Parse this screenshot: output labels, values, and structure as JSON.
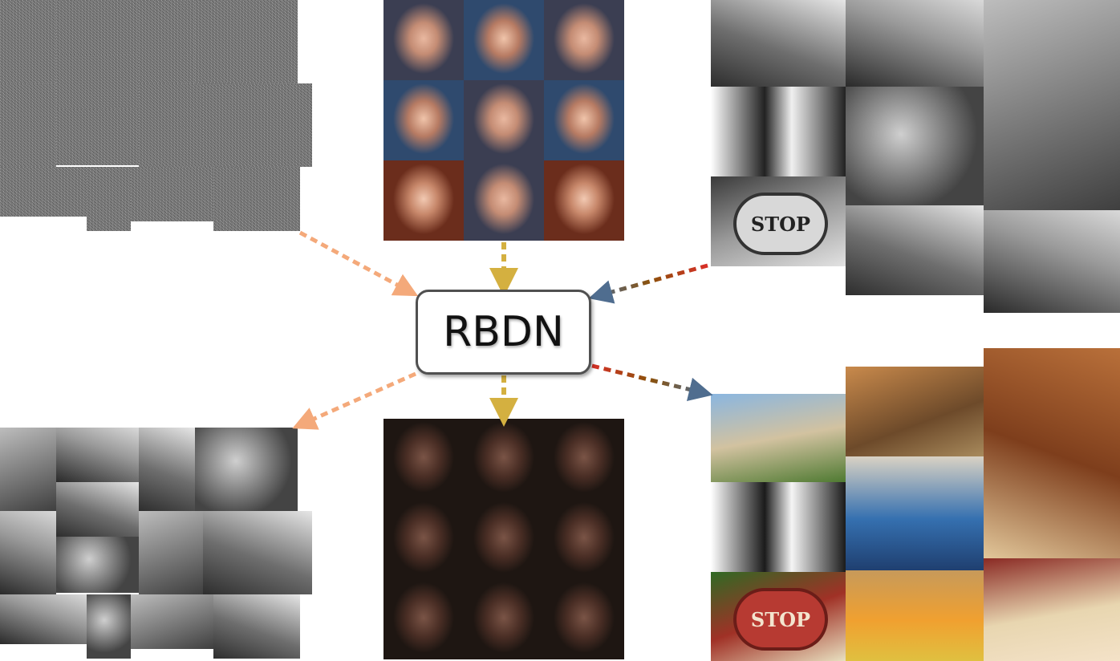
{
  "network": {
    "label": "RBDN"
  },
  "panels": {
    "noisy_input": "noisy-grayscale-images",
    "denoised_output": "denoised-grayscale-images",
    "dark_faces_input": "low-light-face-images",
    "enhanced_faces_output": "enhanced-face-images",
    "grayscale_input": "grayscale-scene-images",
    "colorized_output": "colorized-scene-images"
  },
  "stop_sign_text": "STOP",
  "arrow_colors": {
    "denoise": "#f4a97a",
    "enhance": "#d4b040",
    "colorize": [
      "#d73027",
      "#8c510a",
      "#4f6d8f"
    ]
  }
}
